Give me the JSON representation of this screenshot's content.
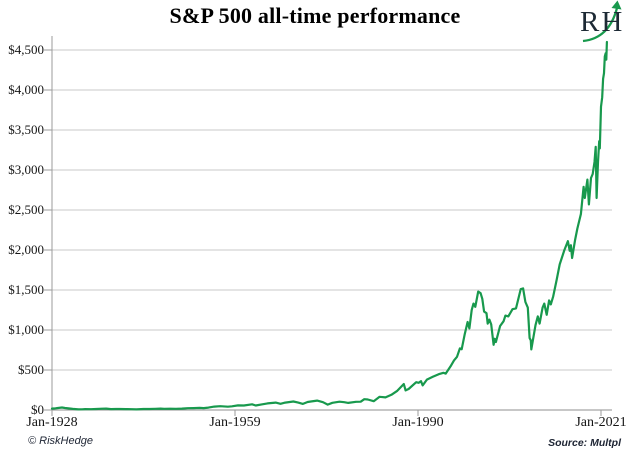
{
  "header": {
    "logo_text": "RH"
  },
  "footer": {
    "copyright": "© RiskHedge",
    "source": "Source: Multpl"
  },
  "chart_data": {
    "type": "line",
    "title": "S&P 500 all-time performance",
    "series_name": "S&P 500 index price (USD)",
    "line_color": "#18994d",
    "grid": "horizontal",
    "legend": "none",
    "ylim": [
      0,
      4500
    ],
    "y_tick_step": 500,
    "x_range_years": [
      1928,
      2021
    ],
    "x_tick_labels": [
      "Jan-1928",
      "Jan-1959",
      "Jan-1990",
      "Jan-2021"
    ],
    "y_tick_labels": [
      "$4,500",
      "$4,000",
      "$3,500",
      "$3,000",
      "$2,500",
      "$2,000",
      "$1,500",
      "$1,000",
      "$500",
      "$0"
    ],
    "points": [
      [
        1928.0,
        18
      ],
      [
        1928.6,
        21
      ],
      [
        1929.0,
        25
      ],
      [
        1929.7,
        31
      ],
      [
        1930.2,
        25
      ],
      [
        1930.8,
        20
      ],
      [
        1931.5,
        14
      ],
      [
        1932.5,
        7
      ],
      [
        1933.1,
        9
      ],
      [
        1933.6,
        11
      ],
      [
        1934.6,
        10
      ],
      [
        1935.5,
        12
      ],
      [
        1936.5,
        16
      ],
      [
        1937.2,
        18
      ],
      [
        1938.0,
        11
      ],
      [
        1938.8,
        13
      ],
      [
        1939.5,
        12
      ],
      [
        1940.5,
        11
      ],
      [
        1941.5,
        10
      ],
      [
        1942.3,
        8
      ],
      [
        1943.5,
        12
      ],
      [
        1944.5,
        13
      ],
      [
        1945.5,
        15
      ],
      [
        1946.4,
        18
      ],
      [
        1947.0,
        15
      ],
      [
        1948.0,
        16
      ],
      [
        1949.0,
        15
      ],
      [
        1950.0,
        17
      ],
      [
        1951.0,
        22
      ],
      [
        1952.0,
        24
      ],
      [
        1953.0,
        26
      ],
      [
        1953.7,
        24
      ],
      [
        1954.5,
        30
      ],
      [
        1955.5,
        42
      ],
      [
        1956.5,
        47
      ],
      [
        1957.8,
        41
      ],
      [
        1958.5,
        46
      ],
      [
        1959.5,
        57
      ],
      [
        1960.5,
        56
      ],
      [
        1961.9,
        71
      ],
      [
        1962.5,
        56
      ],
      [
        1963.5,
        70
      ],
      [
        1964.5,
        82
      ],
      [
        1965.9,
        92
      ],
      [
        1966.7,
        78
      ],
      [
        1967.5,
        93
      ],
      [
        1968.9,
        106
      ],
      [
        1969.7,
        93
      ],
      [
        1970.5,
        76
      ],
      [
        1971.3,
        100
      ],
      [
        1972.0,
        108
      ],
      [
        1972.9,
        117
      ],
      [
        1973.9,
        97
      ],
      [
        1974.7,
        67
      ],
      [
        1975.5,
        90
      ],
      [
        1976.7,
        104
      ],
      [
        1977.5,
        97
      ],
      [
        1978.2,
        89
      ],
      [
        1979.5,
        102
      ],
      [
        1980.3,
        104
      ],
      [
        1980.9,
        135
      ],
      [
        1981.5,
        131
      ],
      [
        1982.5,
        110
      ],
      [
        1983.5,
        165
      ],
      [
        1984.5,
        157
      ],
      [
        1985.5,
        190
      ],
      [
        1986.5,
        240
      ],
      [
        1987.6,
        325
      ],
      [
        1987.9,
        245
      ],
      [
        1988.4,
        262
      ],
      [
        1989.7,
        348
      ],
      [
        1990.1,
        340
      ],
      [
        1990.5,
        360
      ],
      [
        1990.8,
        307
      ],
      [
        1991.5,
        380
      ],
      [
        1992.5,
        415
      ],
      [
        1993.5,
        448
      ],
      [
        1994.3,
        465
      ],
      [
        1994.7,
        455
      ],
      [
        1995.5,
        545
      ],
      [
        1996.1,
        620
      ],
      [
        1996.6,
        665
      ],
      [
        1997.1,
        770
      ],
      [
        1997.4,
        760
      ],
      [
        1997.9,
        940
      ],
      [
        1998.4,
        1100
      ],
      [
        1998.7,
        1020
      ],
      [
        1999.1,
        1250
      ],
      [
        1999.4,
        1330
      ],
      [
        1999.7,
        1290
      ],
      [
        2000.2,
        1480
      ],
      [
        2000.6,
        1460
      ],
      [
        2000.9,
        1390
      ],
      [
        2001.2,
        1230
      ],
      [
        2001.6,
        1210
      ],
      [
        2001.8,
        1080
      ],
      [
        2002.1,
        1130
      ],
      [
        2002.4,
        1070
      ],
      [
        2002.8,
        815
      ],
      [
        2003.0,
        890
      ],
      [
        2003.2,
        850
      ],
      [
        2003.9,
        1050
      ],
      [
        2004.5,
        1110
      ],
      [
        2004.8,
        1180
      ],
      [
        2005.3,
        1170
      ],
      [
        2006.0,
        1260
      ],
      [
        2006.6,
        1270
      ],
      [
        2007.4,
        1510
      ],
      [
        2007.8,
        1520
      ],
      [
        2008.2,
        1350
      ],
      [
        2008.6,
        1280
      ],
      [
        2008.9,
        900
      ],
      [
        2009.1,
        870
      ],
      [
        2009.2,
        757
      ],
      [
        2009.9,
        1060
      ],
      [
        2010.3,
        1170
      ],
      [
        2010.6,
        1080
      ],
      [
        2011.1,
        1280
      ],
      [
        2011.4,
        1330
      ],
      [
        2011.8,
        1190
      ],
      [
        2012.2,
        1370
      ],
      [
        2012.5,
        1320
      ],
      [
        2012.9,
        1420
      ],
      [
        2013.5,
        1630
      ],
      [
        2014.0,
        1820
      ],
      [
        2014.8,
        2000
      ],
      [
        2015.4,
        2110
      ],
      [
        2015.7,
        1990
      ],
      [
        2015.9,
        2060
      ],
      [
        2016.1,
        1900
      ],
      [
        2016.6,
        2120
      ],
      [
        2017.0,
        2270
      ],
      [
        2017.6,
        2450
      ],
      [
        2018.05,
        2790
      ],
      [
        2018.25,
        2650
      ],
      [
        2018.7,
        2880
      ],
      [
        2018.95,
        2570
      ],
      [
        2019.3,
        2900
      ],
      [
        2019.6,
        2950
      ],
      [
        2019.9,
        3100
      ],
      [
        2020.1,
        3290
      ],
      [
        2020.25,
        2650
      ],
      [
        2020.5,
        3100
      ],
      [
        2020.7,
        3360
      ],
      [
        2020.8,
        3270
      ],
      [
        2021.0,
        3790
      ],
      [
        2021.2,
        3910
      ],
      [
        2021.35,
        4140
      ],
      [
        2021.5,
        4210
      ],
      [
        2021.65,
        4420
      ],
      [
        2021.8,
        4460
      ],
      [
        2021.9,
        4380
      ],
      [
        2022.0,
        4600
      ]
    ]
  }
}
